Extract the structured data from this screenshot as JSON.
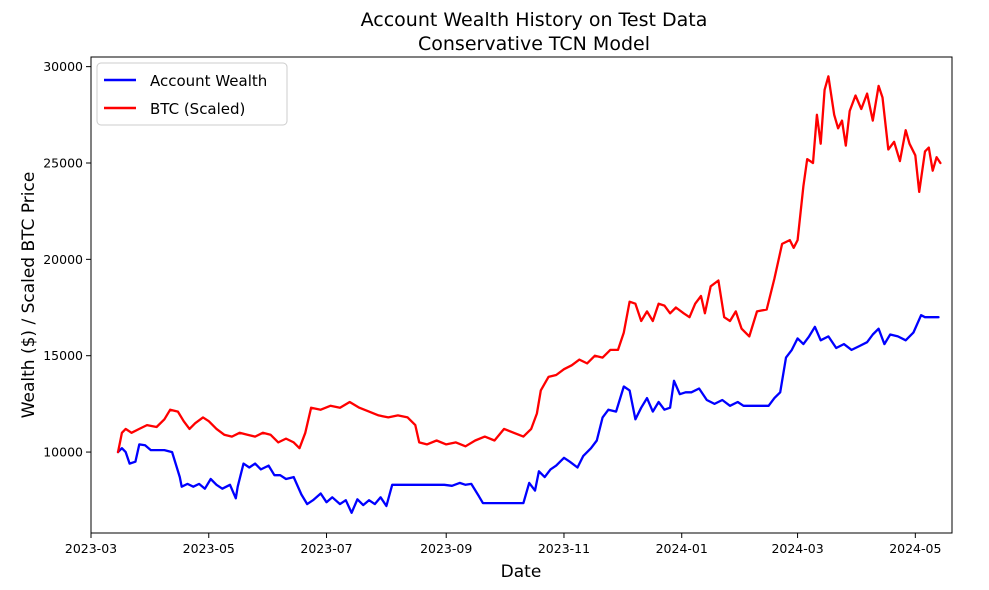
{
  "chart_data": {
    "type": "line",
    "title": "Account Wealth History on Test Data",
    "subtitle": "Conservative TCN Model",
    "xlabel": "Date",
    "ylabel": "Wealth ($) / Scaled BTC Price",
    "xlim": [
      "2023-03-01",
      "2024-05-20"
    ],
    "ylim": [
      5800,
      30500
    ],
    "x_ticks": [
      "2023-03",
      "2023-05",
      "2023-07",
      "2023-09",
      "2023-11",
      "2024-01",
      "2024-03",
      "2024-05"
    ],
    "y_ticks": [
      10000,
      15000,
      20000,
      25000,
      30000
    ],
    "legend_position": "upper-left",
    "grid": false,
    "series": [
      {
        "name": "Account Wealth",
        "color": "#0000ff",
        "points": [
          [
            "2023-03-15",
            10000
          ],
          [
            "2023-03-17",
            10200
          ],
          [
            "2023-03-19",
            10000
          ],
          [
            "2023-03-21",
            9400
          ],
          [
            "2023-03-24",
            9500
          ],
          [
            "2023-03-26",
            10400
          ],
          [
            "2023-03-29",
            10350
          ],
          [
            "2023-04-01",
            10100
          ],
          [
            "2023-04-08",
            10100
          ],
          [
            "2023-04-12",
            10000
          ],
          [
            "2023-04-16",
            8700
          ],
          [
            "2023-04-17",
            8200
          ],
          [
            "2023-04-20",
            8350
          ],
          [
            "2023-04-23",
            8200
          ],
          [
            "2023-04-26",
            8350
          ],
          [
            "2023-04-29",
            8100
          ],
          [
            "2023-05-02",
            8600
          ],
          [
            "2023-05-05",
            8300
          ],
          [
            "2023-05-08",
            8100
          ],
          [
            "2023-05-12",
            8300
          ],
          [
            "2023-05-15",
            7600
          ],
          [
            "2023-05-16",
            8200
          ],
          [
            "2023-05-19",
            9400
          ],
          [
            "2023-05-22",
            9200
          ],
          [
            "2023-05-25",
            9400
          ],
          [
            "2023-05-28",
            9100
          ],
          [
            "2023-06-01",
            9300
          ],
          [
            "2023-06-04",
            8800
          ],
          [
            "2023-06-07",
            8800
          ],
          [
            "2023-06-10",
            8600
          ],
          [
            "2023-06-14",
            8700
          ],
          [
            "2023-06-18",
            7800
          ],
          [
            "2023-06-21",
            7300
          ],
          [
            "2023-06-24",
            7500
          ],
          [
            "2023-06-28",
            7850
          ],
          [
            "2023-07-01",
            7400
          ],
          [
            "2023-07-04",
            7650
          ],
          [
            "2023-07-08",
            7300
          ],
          [
            "2023-07-11",
            7500
          ],
          [
            "2023-07-14",
            6850
          ],
          [
            "2023-07-17",
            7550
          ],
          [
            "2023-07-20",
            7250
          ],
          [
            "2023-07-23",
            7500
          ],
          [
            "2023-07-26",
            7300
          ],
          [
            "2023-07-29",
            7650
          ],
          [
            "2023-08-01",
            7200
          ],
          [
            "2023-08-04",
            8300
          ],
          [
            "2023-08-31",
            8300
          ],
          [
            "2023-09-04",
            8250
          ],
          [
            "2023-09-08",
            8400
          ],
          [
            "2023-09-11",
            8300
          ],
          [
            "2023-09-14",
            8350
          ],
          [
            "2023-09-18",
            7700
          ],
          [
            "2023-09-20",
            7350
          ],
          [
            "2023-10-11",
            7350
          ],
          [
            "2023-10-14",
            8400
          ],
          [
            "2023-10-17",
            8000
          ],
          [
            "2023-10-19",
            9000
          ],
          [
            "2023-10-22",
            8700
          ],
          [
            "2023-10-25",
            9100
          ],
          [
            "2023-10-28",
            9300
          ],
          [
            "2023-11-01",
            9700
          ],
          [
            "2023-11-04",
            9500
          ],
          [
            "2023-11-08",
            9200
          ],
          [
            "2023-11-11",
            9800
          ],
          [
            "2023-11-15",
            10200
          ],
          [
            "2023-11-18",
            10600
          ],
          [
            "2023-11-21",
            11800
          ],
          [
            "2023-11-24",
            12200
          ],
          [
            "2023-11-28",
            12100
          ],
          [
            "2023-12-02",
            13400
          ],
          [
            "2023-12-05",
            13200
          ],
          [
            "2023-12-08",
            11700
          ],
          [
            "2023-12-11",
            12300
          ],
          [
            "2023-12-14",
            12800
          ],
          [
            "2023-12-17",
            12100
          ],
          [
            "2023-12-20",
            12600
          ],
          [
            "2023-12-23",
            12200
          ],
          [
            "2023-12-26",
            12300
          ],
          [
            "2023-12-28",
            13700
          ],
          [
            "2023-12-31",
            13000
          ],
          [
            "2024-01-03",
            13100
          ],
          [
            "2024-01-06",
            13100
          ],
          [
            "2024-01-10",
            13300
          ],
          [
            "2024-01-14",
            12700
          ],
          [
            "2024-01-18",
            12500
          ],
          [
            "2024-01-22",
            12700
          ],
          [
            "2024-01-26",
            12400
          ],
          [
            "2024-01-30",
            12600
          ],
          [
            "2024-02-02",
            12400
          ],
          [
            "2024-02-15",
            12400
          ],
          [
            "2024-02-18",
            12800
          ],
          [
            "2024-02-21",
            13100
          ],
          [
            "2024-02-24",
            14900
          ],
          [
            "2024-02-27",
            15300
          ],
          [
            "2024-03-01",
            15900
          ],
          [
            "2024-03-04",
            15600
          ],
          [
            "2024-03-07",
            16000
          ],
          [
            "2024-03-10",
            16500
          ],
          [
            "2024-03-13",
            15800
          ],
          [
            "2024-03-17",
            16000
          ],
          [
            "2024-03-21",
            15400
          ],
          [
            "2024-03-25",
            15600
          ],
          [
            "2024-03-29",
            15300
          ],
          [
            "2024-04-02",
            15500
          ],
          [
            "2024-04-06",
            15700
          ],
          [
            "2024-04-09",
            16100
          ],
          [
            "2024-04-12",
            16400
          ],
          [
            "2024-04-15",
            15600
          ],
          [
            "2024-04-18",
            16100
          ],
          [
            "2024-04-22",
            16000
          ],
          [
            "2024-04-26",
            15800
          ],
          [
            "2024-04-30",
            16200
          ],
          [
            "2024-05-04",
            17100
          ],
          [
            "2024-05-06",
            17000
          ],
          [
            "2024-05-13",
            17000
          ]
        ]
      },
      {
        "name": "BTC (Scaled)",
        "color": "#ff0000",
        "points": [
          [
            "2023-03-15",
            10000
          ],
          [
            "2023-03-16",
            10500
          ],
          [
            "2023-03-17",
            11000
          ],
          [
            "2023-03-19",
            11200
          ],
          [
            "2023-03-22",
            11000
          ],
          [
            "2023-03-26",
            11200
          ],
          [
            "2023-03-30",
            11400
          ],
          [
            "2023-04-04",
            11300
          ],
          [
            "2023-04-08",
            11700
          ],
          [
            "2023-04-11",
            12200
          ],
          [
            "2023-04-15",
            12100
          ],
          [
            "2023-04-18",
            11600
          ],
          [
            "2023-04-21",
            11200
          ],
          [
            "2023-04-24",
            11500
          ],
          [
            "2023-04-28",
            11800
          ],
          [
            "2023-05-01",
            11600
          ],
          [
            "2023-05-05",
            11200
          ],
          [
            "2023-05-09",
            10900
          ],
          [
            "2023-05-13",
            10800
          ],
          [
            "2023-05-17",
            11000
          ],
          [
            "2023-05-21",
            10900
          ],
          [
            "2023-05-25",
            10800
          ],
          [
            "2023-05-29",
            11000
          ],
          [
            "2023-06-02",
            10900
          ],
          [
            "2023-06-06",
            10500
          ],
          [
            "2023-06-10",
            10700
          ],
          [
            "2023-06-14",
            10500
          ],
          [
            "2023-06-17",
            10200
          ],
          [
            "2023-06-20",
            11000
          ],
          [
            "2023-06-23",
            12300
          ],
          [
            "2023-06-28",
            12200
          ],
          [
            "2023-07-03",
            12400
          ],
          [
            "2023-07-08",
            12300
          ],
          [
            "2023-07-13",
            12600
          ],
          [
            "2023-07-18",
            12300
          ],
          [
            "2023-07-23",
            12100
          ],
          [
            "2023-07-28",
            11900
          ],
          [
            "2023-08-02",
            11800
          ],
          [
            "2023-08-07",
            11900
          ],
          [
            "2023-08-12",
            11800
          ],
          [
            "2023-08-16",
            11400
          ],
          [
            "2023-08-18",
            10500
          ],
          [
            "2023-08-22",
            10400
          ],
          [
            "2023-08-27",
            10600
          ],
          [
            "2023-09-01",
            10400
          ],
          [
            "2023-09-06",
            10500
          ],
          [
            "2023-09-11",
            10300
          ],
          [
            "2023-09-16",
            10600
          ],
          [
            "2023-09-21",
            10800
          ],
          [
            "2023-09-26",
            10600
          ],
          [
            "2023-10-01",
            11200
          ],
          [
            "2023-10-06",
            11000
          ],
          [
            "2023-10-11",
            10800
          ],
          [
            "2023-10-15",
            11200
          ],
          [
            "2023-10-18",
            12000
          ],
          [
            "2023-10-20",
            13200
          ],
          [
            "2023-10-24",
            13900
          ],
          [
            "2023-10-28",
            14000
          ],
          [
            "2023-11-01",
            14300
          ],
          [
            "2023-11-05",
            14500
          ],
          [
            "2023-11-09",
            14800
          ],
          [
            "2023-11-13",
            14600
          ],
          [
            "2023-11-17",
            15000
          ],
          [
            "2023-11-21",
            14900
          ],
          [
            "2023-11-25",
            15300
          ],
          [
            "2023-11-29",
            15300
          ],
          [
            "2023-12-02",
            16200
          ],
          [
            "2023-12-05",
            17800
          ],
          [
            "2023-12-08",
            17700
          ],
          [
            "2023-12-11",
            16800
          ],
          [
            "2023-12-14",
            17300
          ],
          [
            "2023-12-17",
            16800
          ],
          [
            "2023-12-20",
            17700
          ],
          [
            "2023-12-23",
            17600
          ],
          [
            "2023-12-26",
            17200
          ],
          [
            "2023-12-29",
            17500
          ],
          [
            "2024-01-02",
            17200
          ],
          [
            "2024-01-05",
            17000
          ],
          [
            "2024-01-08",
            17700
          ],
          [
            "2024-01-11",
            18100
          ],
          [
            "2024-01-13",
            17200
          ],
          [
            "2024-01-16",
            18600
          ],
          [
            "2024-01-20",
            18900
          ],
          [
            "2024-01-23",
            17000
          ],
          [
            "2024-01-26",
            16800
          ],
          [
            "2024-01-29",
            17300
          ],
          [
            "2024-02-01",
            16400
          ],
          [
            "2024-02-05",
            16000
          ],
          [
            "2024-02-09",
            17300
          ],
          [
            "2024-02-14",
            17400
          ],
          [
            "2024-02-18",
            19000
          ],
          [
            "2024-02-22",
            20800
          ],
          [
            "2024-02-26",
            21000
          ],
          [
            "2024-02-28",
            20600
          ],
          [
            "2024-03-01",
            21000
          ],
          [
            "2024-03-04",
            23800
          ],
          [
            "2024-03-06",
            25200
          ],
          [
            "2024-03-09",
            25000
          ],
          [
            "2024-03-11",
            27500
          ],
          [
            "2024-03-13",
            26000
          ],
          [
            "2024-03-15",
            28800
          ],
          [
            "2024-03-17",
            29500
          ],
          [
            "2024-03-20",
            27500
          ],
          [
            "2024-03-22",
            26800
          ],
          [
            "2024-03-24",
            27200
          ],
          [
            "2024-03-26",
            25900
          ],
          [
            "2024-03-28",
            27700
          ],
          [
            "2024-03-31",
            28500
          ],
          [
            "2024-04-03",
            27800
          ],
          [
            "2024-04-06",
            28600
          ],
          [
            "2024-04-09",
            27200
          ],
          [
            "2024-04-12",
            29000
          ],
          [
            "2024-04-14",
            28400
          ],
          [
            "2024-04-17",
            25700
          ],
          [
            "2024-04-20",
            26100
          ],
          [
            "2024-04-23",
            25100
          ],
          [
            "2024-04-26",
            26700
          ],
          [
            "2024-04-28",
            26000
          ],
          [
            "2024-05-01",
            25400
          ],
          [
            "2024-05-03",
            23500
          ],
          [
            "2024-05-06",
            25600
          ],
          [
            "2024-05-08",
            25800
          ],
          [
            "2024-05-10",
            24600
          ],
          [
            "2024-05-12",
            25300
          ],
          [
            "2024-05-14",
            25000
          ]
        ]
      }
    ]
  }
}
